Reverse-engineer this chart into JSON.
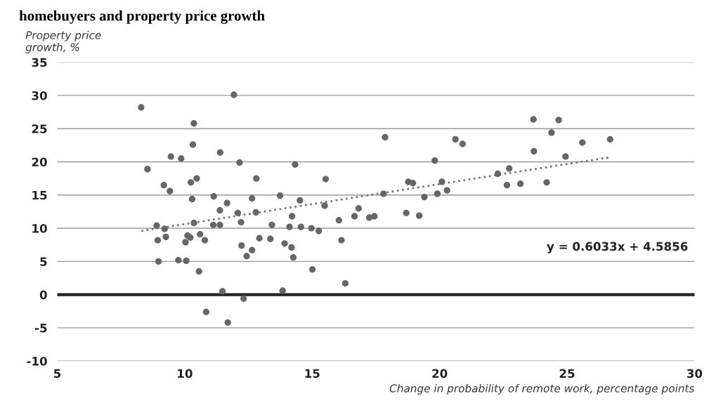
{
  "chart_data": {
    "type": "scatter",
    "title": "homebuyers and property price growth",
    "xlabel": "Change in probability of remote work, percentage points",
    "ylabel": "Property price\ngrowth, %",
    "xlim": [
      5,
      30
    ],
    "xticks": [
      5,
      10,
      15,
      20,
      25,
      30
    ],
    "ylim": [
      -10,
      35
    ],
    "yticks": [
      -10,
      -5,
      0,
      5,
      10,
      15,
      20,
      25,
      30,
      35
    ],
    "grid": "y",
    "marker": "circle",
    "ref_lines": [
      {
        "axis": "y",
        "value": 0,
        "label": null,
        "color": "#222222"
      }
    ],
    "annotations": [
      "y = 0.6033x + 4.5856"
    ],
    "series": [
      {
        "color": "#666666",
        "x": [
          8.29,
          10.36,
          10.32,
          11.39,
          9.46,
          9.86,
          8.54,
          9.18,
          9.42,
          10.24,
          10.47,
          10.29,
          11.14,
          11.66,
          11.38,
          8.9,
          9.21,
          10.36,
          11.12,
          11.38,
          8.94,
          9.26,
          10.11,
          10.22,
          10.03,
          10.6,
          10.79,
          8.97,
          9.75,
          10.06,
          10.56,
          11.48,
          10.84,
          11.69,
          11.93,
          12.15,
          14.33,
          12.81,
          15.53,
          12.64,
          13.74,
          14.52,
          12.08,
          12.79,
          14.21,
          15.49,
          16.82,
          16.05,
          16.66,
          17.24,
          12.21,
          13.42,
          14.11,
          14.56,
          14.97,
          15.26,
          12.93,
          13.36,
          13.92,
          14.19,
          12.23,
          12.64,
          12.43,
          14.26,
          16.15,
          15.01,
          16.3,
          13.84,
          12.31,
          17.86,
          20.62,
          20.9,
          19.81,
          18.77,
          18.95,
          20.09,
          17.8,
          19.91,
          20.29,
          19.4,
          17.44,
          18.69,
          19.2,
          22.28,
          22.73,
          22.64,
          23.17,
          23.68,
          24.67,
          24.39,
          23.7,
          24.2,
          24.94,
          25.6,
          26.69
        ],
        "values": [
          28.2,
          25.8,
          22.6,
          21.4,
          20.8,
          20.5,
          18.9,
          16.5,
          15.6,
          16.9,
          17.5,
          14.4,
          14.8,
          13.8,
          12.7,
          10.4,
          9.9,
          10.8,
          10.5,
          10.5,
          8.2,
          8.7,
          8.9,
          8.6,
          7.9,
          9.1,
          8.2,
          5.0,
          5.2,
          5.1,
          3.5,
          0.5,
          -2.6,
          -4.2,
          30.1,
          19.9,
          19.6,
          17.5,
          17.4,
          14.5,
          14.9,
          14.2,
          12.3,
          12.4,
          11.8,
          13.4,
          13.0,
          11.2,
          11.8,
          11.6,
          10.9,
          10.5,
          10.2,
          10.2,
          10.0,
          9.6,
          8.5,
          8.4,
          7.7,
          7.1,
          7.4,
          6.7,
          5.8,
          5.6,
          8.2,
          3.8,
          1.7,
          0.6,
          -0.6,
          23.7,
          23.4,
          22.7,
          20.2,
          17.0,
          16.8,
          17.0,
          15.2,
          15.2,
          15.7,
          14.7,
          11.8,
          12.3,
          11.9,
          18.2,
          19.0,
          16.5,
          16.7,
          26.4,
          26.3,
          24.4,
          21.6,
          16.9,
          20.8,
          22.9,
          23.4
        ]
      },
      {
        "type": "line",
        "color": "#777777",
        "line_style": "dotted",
        "marker": "none",
        "x": [
          8.3,
          26.7
        ],
        "values": [
          9.6,
          20.7
        ]
      }
    ]
  }
}
